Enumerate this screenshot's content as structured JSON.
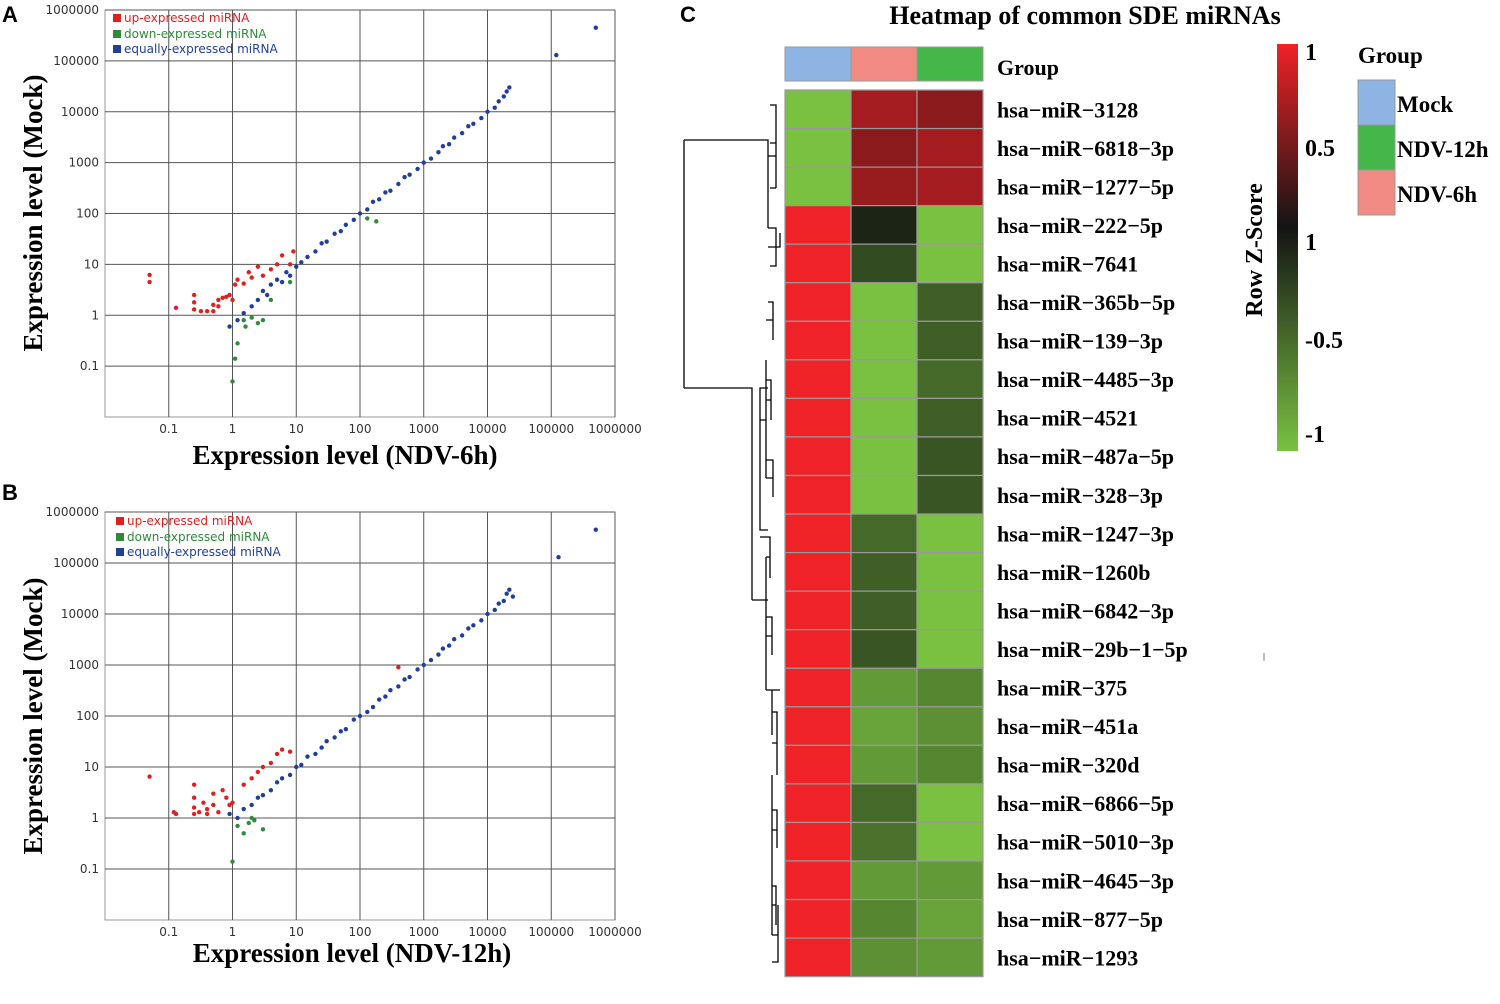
{
  "panels": {
    "a": "A",
    "b": "B",
    "c": "C"
  },
  "colors": {
    "up": "#e02020",
    "down": "#2e8b3a",
    "equal": "#1f3f9a",
    "mock": "#8db4e3",
    "ndv6": "#f28b84",
    "ndv12": "#45b649"
  },
  "chart_data": [
    {
      "type": "scatter",
      "panel": "A",
      "xlabel": "Expression level (NDV-6h)",
      "ylabel": "Expression level (Mock)",
      "scale": "log10",
      "xlim": [
        0.01,
        1000000
      ],
      "ylim": [
        0.01,
        1000000
      ],
      "x_ticks": [
        "0.1",
        "1",
        "10",
        "100",
        "1000",
        "10000",
        "100000",
        "1000000"
      ],
      "y_ticks": [
        "0.1",
        "1",
        "10",
        "100",
        "1000",
        "10000",
        "100000",
        "1000000"
      ],
      "legend": [
        "up-expressed miRNA",
        "down-expressed miRNA",
        "equally-expressed miRNA"
      ],
      "series": [
        {
          "name": "up-expressed miRNA",
          "points": [
            [
              0.05,
              6.2
            ],
            [
              0.05,
              4.5
            ],
            [
              0.13,
              1.4
            ],
            [
              0.25,
              2.5
            ],
            [
              0.25,
              1.8
            ],
            [
              0.25,
              1.3
            ],
            [
              0.32,
              1.2
            ],
            [
              0.4,
              1.2
            ],
            [
              0.5,
              1.6
            ],
            [
              0.5,
              1.2
            ],
            [
              0.6,
              2.0
            ],
            [
              0.6,
              1.5
            ],
            [
              0.7,
              2.2
            ],
            [
              0.8,
              2.3
            ],
            [
              0.9,
              2.5
            ],
            [
              1.0,
              2.0
            ],
            [
              1.1,
              4.0
            ],
            [
              1.2,
              5.0
            ],
            [
              1.5,
              4.2
            ],
            [
              1.8,
              7.0
            ],
            [
              2.0,
              5.5
            ],
            [
              2.5,
              9.0
            ],
            [
              3.0,
              6.0
            ],
            [
              4.0,
              8.0
            ],
            [
              5.0,
              10.0
            ],
            [
              6.0,
              15.0
            ],
            [
              8.0,
              10.0
            ],
            [
              9.0,
              18.0
            ]
          ]
        },
        {
          "name": "down-expressed miRNA",
          "points": [
            [
              1.0,
              0.05
            ],
            [
              1.1,
              0.14
            ],
            [
              1.2,
              0.28
            ],
            [
              1.5,
              0.8
            ],
            [
              1.6,
              0.6
            ],
            [
              2.0,
              0.9
            ],
            [
              2.5,
              0.7
            ],
            [
              3.0,
              0.8
            ],
            [
              4.0,
              2.0
            ],
            [
              8.0,
              4.5
            ],
            [
              130,
              80
            ],
            [
              180,
              70
            ]
          ]
        },
        {
          "name": "equally-expressed miRNA",
          "points": [
            [
              0.9,
              0.6
            ],
            [
              1.2,
              0.8
            ],
            [
              1.5,
              1.1
            ],
            [
              2,
              1.5
            ],
            [
              2.5,
              2
            ],
            [
              3,
              3
            ],
            [
              3.5,
              2.5
            ],
            [
              4,
              4
            ],
            [
              5,
              5
            ],
            [
              6,
              4.5
            ],
            [
              7,
              7
            ],
            [
              8,
              6
            ],
            [
              10,
              9
            ],
            [
              12,
              11
            ],
            [
              15,
              14
            ],
            [
              20,
              18
            ],
            [
              25,
              26
            ],
            [
              30,
              28
            ],
            [
              40,
              40
            ],
            [
              50,
              45
            ],
            [
              60,
              60
            ],
            [
              80,
              75
            ],
            [
              100,
              100
            ],
            [
              130,
              120
            ],
            [
              160,
              170
            ],
            [
              200,
              190
            ],
            [
              250,
              260
            ],
            [
              300,
              280
            ],
            [
              400,
              380
            ],
            [
              500,
              520
            ],
            [
              600,
              580
            ],
            [
              800,
              750
            ],
            [
              1000,
              1000
            ],
            [
              1300,
              1200
            ],
            [
              1700,
              1600
            ],
            [
              2000,
              2100
            ],
            [
              2500,
              2300
            ],
            [
              3000,
              3100
            ],
            [
              4000,
              3800
            ],
            [
              5000,
              5200
            ],
            [
              6000,
              5800
            ],
            [
              8000,
              7500
            ],
            [
              10000,
              10000
            ],
            [
              13000,
              12000
            ],
            [
              15000,
              16000
            ],
            [
              18000,
              20000
            ],
            [
              20000,
              25000
            ],
            [
              22000,
              30000
            ],
            [
              120000,
              130000
            ],
            [
              500000,
              450000
            ]
          ]
        }
      ]
    },
    {
      "type": "scatter",
      "panel": "B",
      "xlabel": "Expression level (NDV-12h)",
      "ylabel": "Expression level (Mock)",
      "scale": "log10",
      "xlim": [
        0.01,
        1000000
      ],
      "ylim": [
        0.01,
        1000000
      ],
      "x_ticks": [
        "0.1",
        "1",
        "10",
        "100",
        "1000",
        "10000",
        "100000",
        "1000000"
      ],
      "y_ticks": [
        "0.1",
        "1",
        "10",
        "100",
        "1000",
        "10000",
        "100000",
        "1000000"
      ],
      "legend": [
        "up-expressed miRNA",
        "down-expressed miRNA",
        "equally-expressed miRNA"
      ],
      "series": [
        {
          "name": "up-expressed miRNA",
          "points": [
            [
              0.05,
              6.5
            ],
            [
              0.12,
              1.3
            ],
            [
              0.13,
              1.2
            ],
            [
              0.25,
              4.5
            ],
            [
              0.25,
              2.5
            ],
            [
              0.25,
              1.6
            ],
            [
              0.25,
              1.2
            ],
            [
              0.3,
              1.3
            ],
            [
              0.35,
              2.0
            ],
            [
              0.4,
              1.5
            ],
            [
              0.4,
              1.2
            ],
            [
              0.5,
              3.0
            ],
            [
              0.5,
              1.8
            ],
            [
              0.6,
              1.3
            ],
            [
              0.7,
              3.5
            ],
            [
              0.8,
              2.5
            ],
            [
              0.9,
              1.8
            ],
            [
              1.0,
              2.0
            ],
            [
              1.5,
              4.5
            ],
            [
              2.0,
              6.0
            ],
            [
              2.5,
              8.0
            ],
            [
              3.0,
              10.0
            ],
            [
              4.0,
              12.0
            ],
            [
              5.0,
              18.0
            ],
            [
              6.0,
              22.0
            ],
            [
              8.0,
              20.0
            ],
            [
              400,
              900
            ]
          ]
        },
        {
          "name": "down-expressed miRNA",
          "points": [
            [
              1.0,
              0.14
            ],
            [
              1.2,
              0.7
            ],
            [
              1.5,
              0.5
            ],
            [
              1.8,
              0.8
            ],
            [
              2.0,
              1.0
            ],
            [
              2.2,
              0.9
            ],
            [
              3.0,
              0.6
            ]
          ]
        },
        {
          "name": "equally-expressed miRNA",
          "points": [
            [
              0.9,
              1.2
            ],
            [
              1.2,
              1.0
            ],
            [
              1.5,
              1.5
            ],
            [
              2,
              1.8
            ],
            [
              2.5,
              2.5
            ],
            [
              3,
              2.8
            ],
            [
              4,
              3.5
            ],
            [
              5,
              5
            ],
            [
              6,
              6
            ],
            [
              8,
              7
            ],
            [
              10,
              10
            ],
            [
              12,
              11
            ],
            [
              15,
              16
            ],
            [
              20,
              18
            ],
            [
              25,
              24
            ],
            [
              30,
              32
            ],
            [
              40,
              38
            ],
            [
              50,
              50
            ],
            [
              60,
              55
            ],
            [
              80,
              85
            ],
            [
              100,
              100
            ],
            [
              130,
              120
            ],
            [
              160,
              150
            ],
            [
              200,
              210
            ],
            [
              250,
              240
            ],
            [
              300,
              320
            ],
            [
              400,
              380
            ],
            [
              500,
              520
            ],
            [
              600,
              580
            ],
            [
              800,
              820
            ],
            [
              1000,
              1000
            ],
            [
              1300,
              1250
            ],
            [
              1700,
              1600
            ],
            [
              2000,
              2100
            ],
            [
              2500,
              2400
            ],
            [
              3000,
              3200
            ],
            [
              4000,
              3800
            ],
            [
              5000,
              5200
            ],
            [
              6000,
              6000
            ],
            [
              8000,
              7500
            ],
            [
              10000,
              10000
            ],
            [
              13000,
              12000
            ],
            [
              15000,
              16000
            ],
            [
              18000,
              18000
            ],
            [
              20000,
              25000
            ],
            [
              22000,
              30000
            ],
            [
              25000,
              22000
            ],
            [
              130000,
              130000
            ],
            [
              500000,
              450000
            ]
          ]
        }
      ]
    },
    {
      "type": "heatmap",
      "panel": "C",
      "title": "Heatmap of common SDE miRNAs",
      "annotation_label": "Group",
      "columns": [
        "Mock",
        "NDV-6h",
        "NDV-12h"
      ],
      "rows": [
        "hsa−miR−3128",
        "hsa−miR−6818−3p",
        "hsa−miR−1277−5p",
        "hsa−miR−222−5p",
        "hsa−miR−7641",
        "hsa−miR−365b−5p",
        "hsa−miR−139−3p",
        "hsa−miR−4485−3p",
        "hsa−miR−4521",
        "hsa−miR−487a−5p",
        "hsa−miR−328−3p",
        "hsa−miR−1247−3p",
        "hsa−miR−1260b",
        "hsa−miR−6842−3p",
        "hsa−miR−29b−1−5p",
        "hsa−miR−375",
        "hsa−miR−451a",
        "hsa−miR−320d",
        "hsa−miR−6866−5p",
        "hsa−miR−5010−3p",
        "hsa−miR−4645−3p",
        "hsa−miR−877−5p",
        "hsa−miR−1293"
      ],
      "values": [
        [
          -1.15,
          0.6,
          0.5
        ],
        [
          -1.15,
          0.5,
          0.6
        ],
        [
          -1.15,
          0.55,
          0.6
        ],
        [
          1.15,
          -0.1,
          -0.95
        ],
        [
          1.15,
          -0.3,
          -0.95
        ],
        [
          1.15,
          -1.0,
          -0.4
        ],
        [
          1.15,
          -1.0,
          -0.4
        ],
        [
          1.15,
          -0.9,
          -0.45
        ],
        [
          1.15,
          -0.9,
          -0.4
        ],
        [
          1.15,
          -1.0,
          -0.35
        ],
        [
          1.15,
          -1.0,
          -0.35
        ],
        [
          1.15,
          -0.45,
          -0.9
        ],
        [
          1.15,
          -0.4,
          -0.95
        ],
        [
          1.15,
          -0.4,
          -1.0
        ],
        [
          1.15,
          -0.35,
          -1.0
        ],
        [
          1.15,
          -0.7,
          -0.6
        ],
        [
          1.15,
          -0.75,
          -0.65
        ],
        [
          1.15,
          -0.7,
          -0.6
        ],
        [
          1.15,
          -0.45,
          -0.9
        ],
        [
          1.15,
          -0.5,
          -0.9
        ],
        [
          1.15,
          -0.7,
          -0.7
        ],
        [
          1.15,
          -0.6,
          -0.75
        ],
        [
          1.15,
          -0.65,
          -0.7
        ]
      ],
      "colorbar": {
        "title": "Row Z-Score",
        "ticks": [
          "1",
          "0.5",
          "1",
          "-0.5",
          "-1"
        ],
        "low": "#7ac142",
        "mid": "#101010",
        "high": "#ee2227"
      },
      "legend_title": "Group",
      "legend": [
        {
          "label": "Mock",
          "color": "#8db4e3"
        },
        {
          "label": "NDV-12h",
          "color": "#45b649"
        },
        {
          "label": "NDV-6h",
          "color": "#f28b84"
        }
      ]
    }
  ]
}
